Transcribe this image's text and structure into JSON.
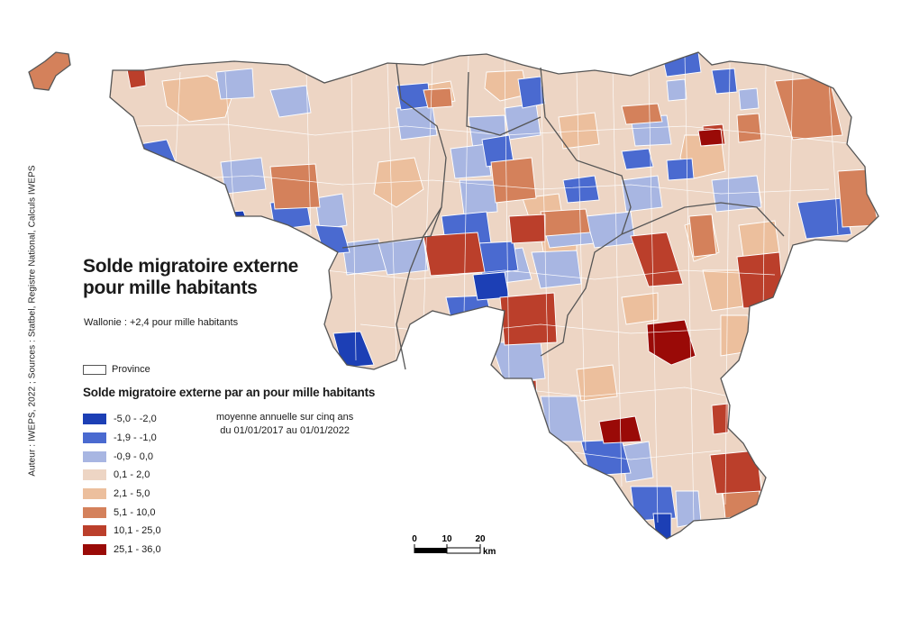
{
  "credit": "Auteur : IWEPS, 2022 ; Sources : Statbel, Registre National, Calculs IWEPS",
  "title": {
    "line1": "Solde migratoire externe",
    "line2": "pour mille habitants"
  },
  "subtitle": "Wallonie : +2,4 pour mille habitants",
  "province_legend_label": "Province",
  "legend": {
    "title": "Solde migratoire externe par an pour mille habitants",
    "classes": [
      {
        "label": "-5,0 - -2,0",
        "color": "#1c3fb5"
      },
      {
        "label": "-1,9 - -1,0",
        "color": "#4a6ad0"
      },
      {
        "label": "-0,9 - 0,0",
        "color": "#a8b6e2"
      },
      {
        "label": "0,1 - 2,0",
        "color": "#edd5c4"
      },
      {
        "label": "2,1 - 5,0",
        "color": "#ecbf9d"
      },
      {
        "label": "5,1 - 10,0",
        "color": "#d4815b"
      },
      {
        "label": "10,1 - 25,0",
        "color": "#bb3f2b"
      },
      {
        "label": "25,1 - 36,0",
        "color": "#9a0a07"
      }
    ]
  },
  "period_note": {
    "line1": "moyenne annuelle sur cinq ans",
    "line2": "du 01/01/2017 au 01/01/2022"
  },
  "scale": {
    "ticks": [
      "0",
      "10",
      "20"
    ],
    "unit": "km"
  },
  "colors": {
    "province_border": "#555555",
    "commune_border": "#ffffff",
    "background": "#ffffff"
  }
}
